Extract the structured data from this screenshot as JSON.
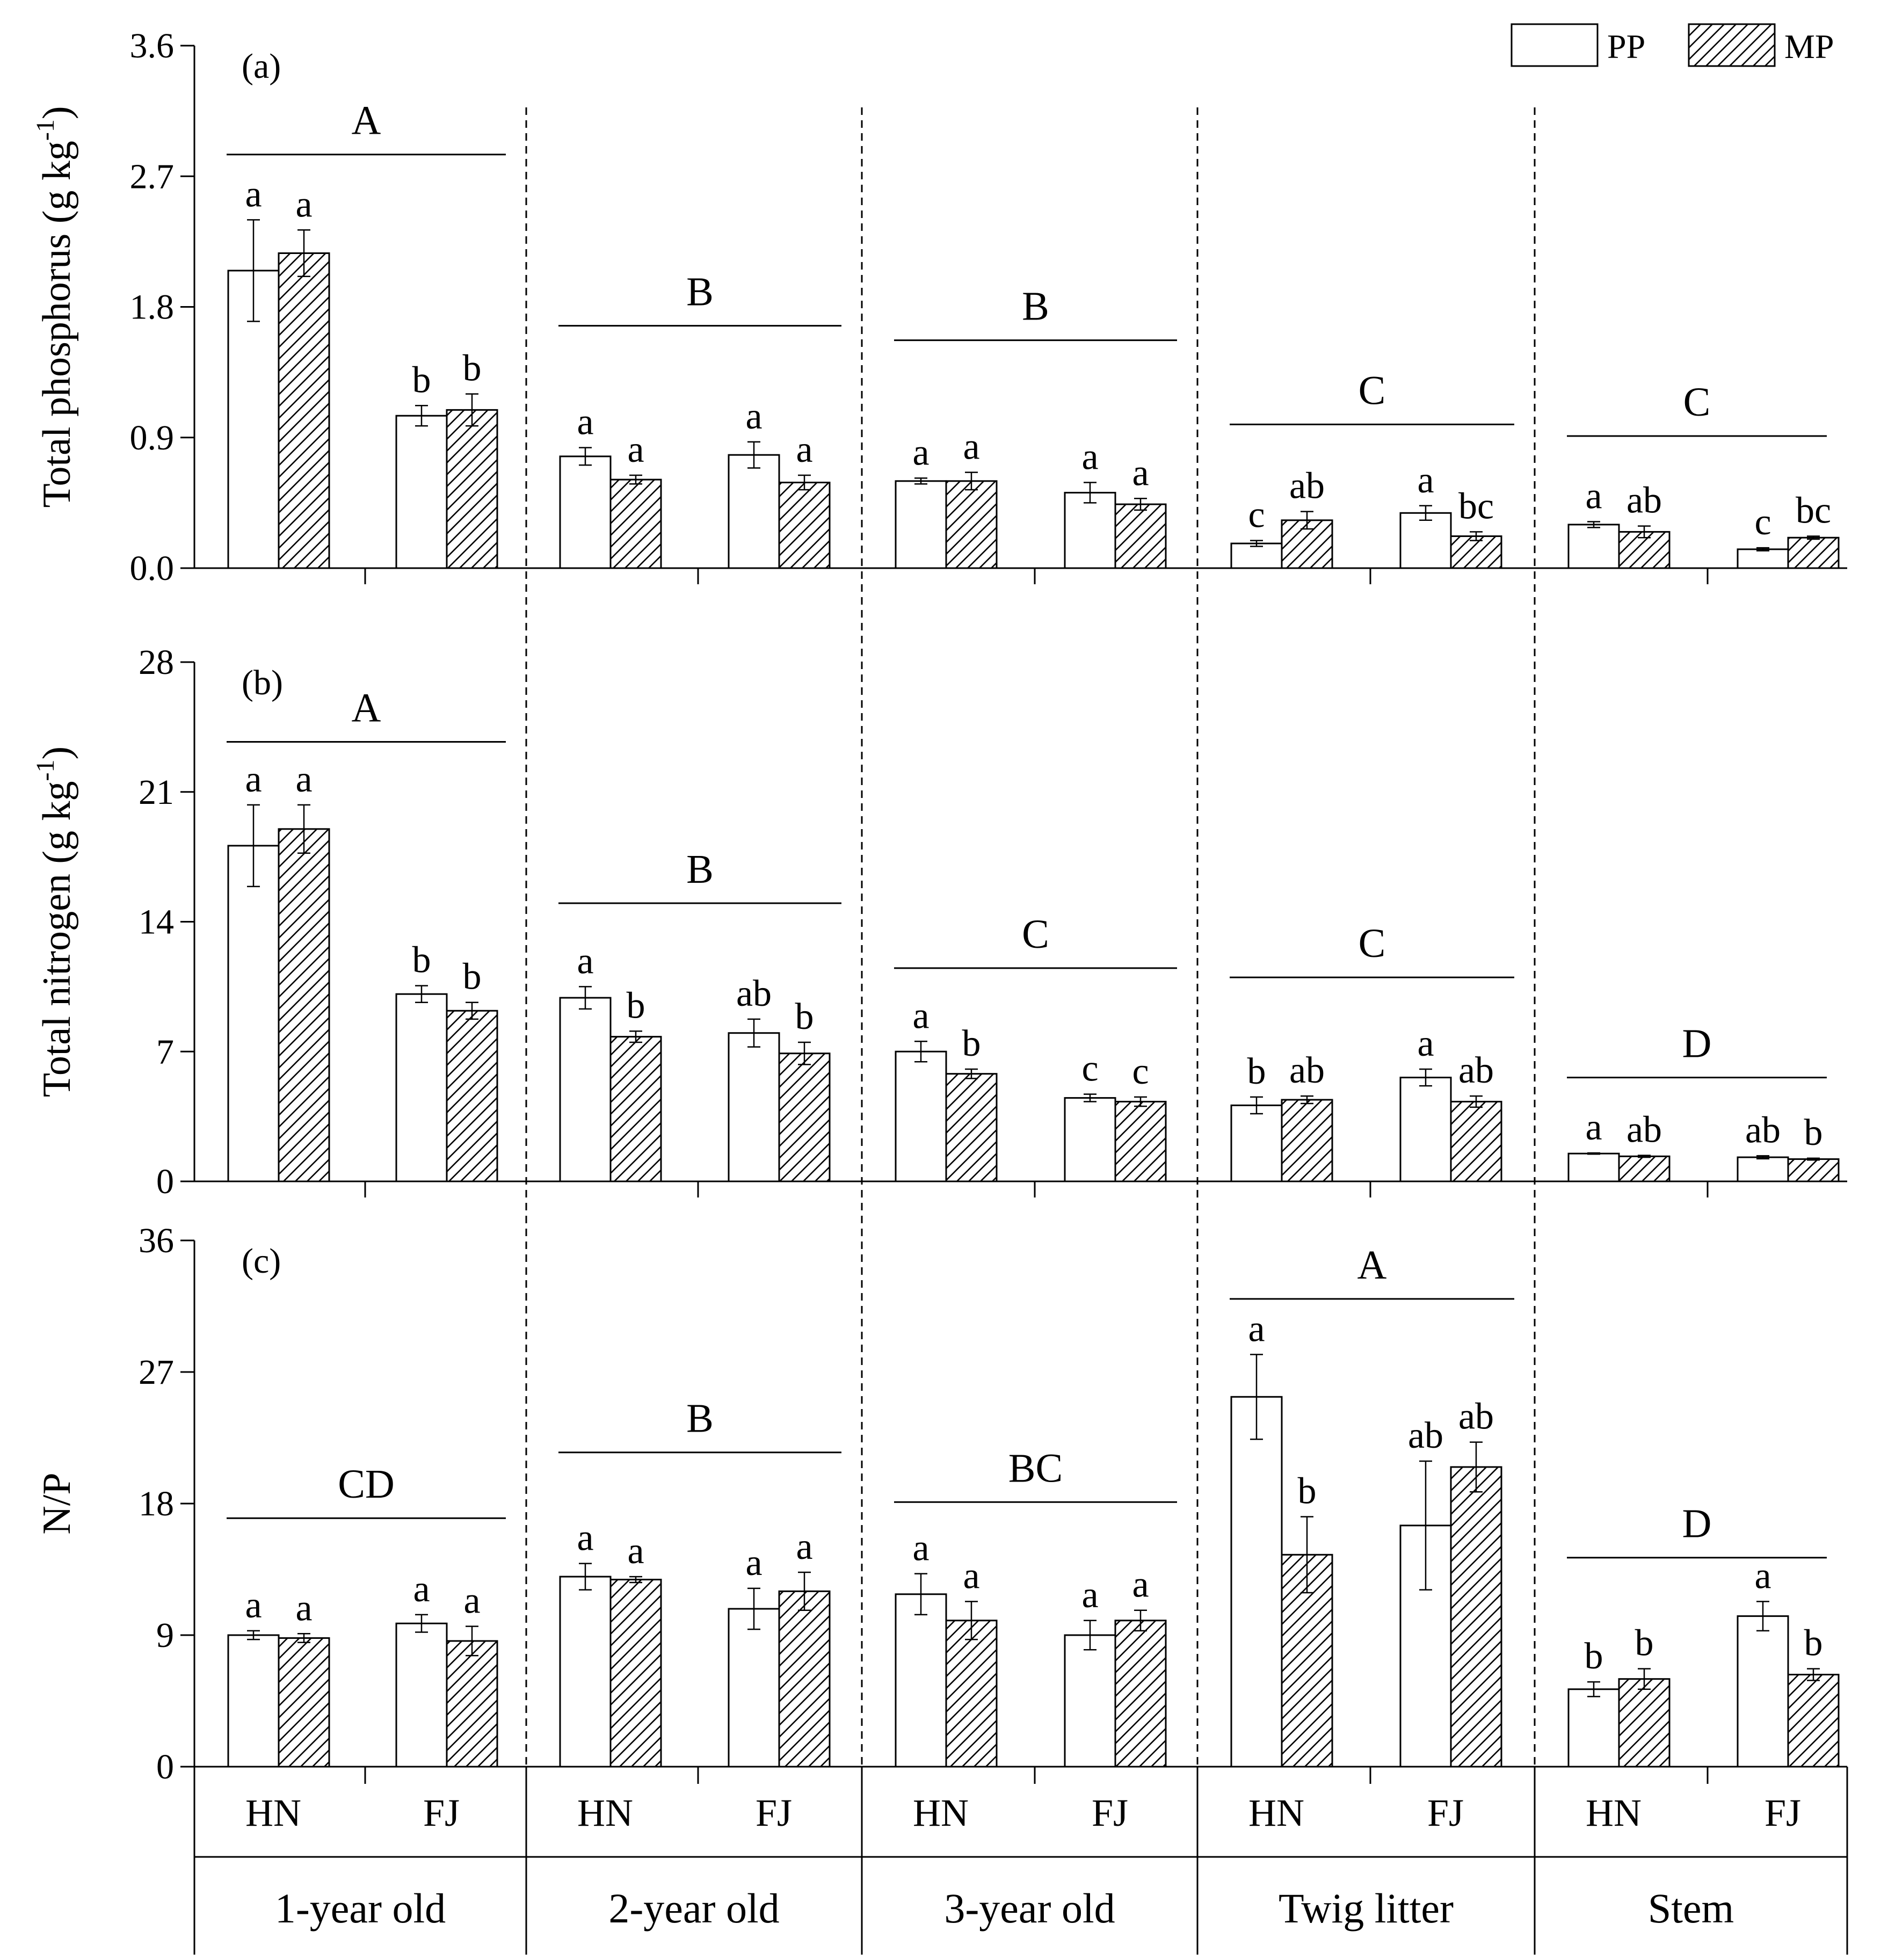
{
  "chart_data": {
    "type": "bar",
    "groups": [
      "1-year old",
      "2-year old",
      "3-year old",
      "Twig litter",
      "Stem"
    ],
    "sites": [
      "HN",
      "FJ"
    ],
    "legend": [
      {
        "name": "PP",
        "pattern": "open"
      },
      {
        "name": "MP",
        "pattern": "hatched"
      }
    ],
    "panels": [
      {
        "label": "(a)",
        "ylabel": "Total phosphorus (g kg",
        "ylabel_sup": "-1",
        "ylabel_end": ")",
        "ylim": [
          0,
          3.6
        ],
        "yticks": [
          0.0,
          0.9,
          1.8,
          2.7,
          3.6
        ],
        "tick_labels": [
          "0.0",
          "0.9",
          "1.8",
          "2.7",
          "3.6"
        ],
        "group_letters": [
          "A",
          "B",
          "B",
          "C",
          "C"
        ],
        "group_line_values": [
          2.85,
          1.67,
          1.57,
          0.99,
          0.91
        ],
        "bars": [
          [
            {
              "pp": 2.05,
              "pp_err": 0.35,
              "mp": 2.17,
              "mp_err": 0.16,
              "pp_sig": "a",
              "mp_sig": "a"
            },
            {
              "pp": 1.05,
              "pp_err": 0.07,
              "mp": 1.09,
              "mp_err": 0.11,
              "pp_sig": "b",
              "mp_sig": "b"
            }
          ],
          [
            {
              "pp": 0.77,
              "pp_err": 0.06,
              "mp": 0.61,
              "mp_err": 0.03,
              "pp_sig": "a",
              "mp_sig": "a"
            },
            {
              "pp": 0.78,
              "pp_err": 0.09,
              "mp": 0.59,
              "mp_err": 0.05,
              "pp_sig": "a",
              "mp_sig": "a"
            }
          ],
          [
            {
              "pp": 0.6,
              "pp_err": 0.02,
              "mp": 0.6,
              "mp_err": 0.06,
              "pp_sig": "a",
              "mp_sig": "a"
            },
            {
              "pp": 0.52,
              "pp_err": 0.07,
              "mp": 0.44,
              "mp_err": 0.04,
              "pp_sig": "a",
              "mp_sig": "a"
            }
          ],
          [
            {
              "pp": 0.17,
              "pp_err": 0.02,
              "mp": 0.33,
              "mp_err": 0.06,
              "pp_sig": "c",
              "mp_sig": "ab"
            },
            {
              "pp": 0.38,
              "pp_err": 0.05,
              "mp": 0.22,
              "mp_err": 0.03,
              "pp_sig": "a",
              "mp_sig": "bc"
            }
          ],
          [
            {
              "pp": 0.3,
              "pp_err": 0.02,
              "mp": 0.25,
              "mp_err": 0.04,
              "pp_sig": "a",
              "mp_sig": "ab"
            },
            {
              "pp": 0.13,
              "pp_err": 0.01,
              "mp": 0.21,
              "mp_err": 0.01,
              "pp_sig": "c",
              "mp_sig": "bc"
            }
          ]
        ]
      },
      {
        "label": "(b)",
        "ylabel": "Total nitrogen (g kg",
        "ylabel_sup": "-1",
        "ylabel_end": ")",
        "ylim": [
          0,
          28
        ],
        "yticks": [
          0,
          7,
          14,
          21,
          28
        ],
        "tick_labels": [
          "0",
          "7",
          "14",
          "21",
          "28"
        ],
        "group_letters": [
          "A",
          "B",
          "C",
          "C",
          "D"
        ],
        "group_line_values": [
          23.7,
          15.0,
          11.5,
          11.0,
          5.6
        ],
        "bars": [
          [
            {
              "pp": 18.1,
              "pp_err": 2.2,
              "mp": 19.0,
              "mp_err": 1.3,
              "pp_sig": "a",
              "mp_sig": "a"
            },
            {
              "pp": 10.1,
              "pp_err": 0.45,
              "mp": 9.2,
              "mp_err": 0.45,
              "pp_sig": "b",
              "mp_sig": "b"
            }
          ],
          [
            {
              "pp": 9.9,
              "pp_err": 0.6,
              "mp": 7.8,
              "mp_err": 0.3,
              "pp_sig": "a",
              "mp_sig": "b"
            },
            {
              "pp": 8.0,
              "pp_err": 0.75,
              "mp": 6.9,
              "mp_err": 0.6,
              "pp_sig": "ab",
              "mp_sig": "b"
            }
          ],
          [
            {
              "pp": 7.0,
              "pp_err": 0.55,
              "mp": 5.8,
              "mp_err": 0.25,
              "pp_sig": "a",
              "mp_sig": "b"
            },
            {
              "pp": 4.5,
              "pp_err": 0.2,
              "mp": 4.3,
              "mp_err": 0.25,
              "pp_sig": "c",
              "mp_sig": "c"
            }
          ],
          [
            {
              "pp": 4.1,
              "pp_err": 0.45,
              "mp": 4.4,
              "mp_err": 0.2,
              "pp_sig": "b",
              "mp_sig": "ab"
            },
            {
              "pp": 5.6,
              "pp_err": 0.45,
              "mp": 4.3,
              "mp_err": 0.3,
              "pp_sig": "a",
              "mp_sig": "ab"
            }
          ],
          [
            {
              "pp": 1.5,
              "pp_err": 0.03,
              "mp": 1.35,
              "mp_err": 0.05,
              "pp_sig": "a",
              "mp_sig": "ab"
            },
            {
              "pp": 1.3,
              "pp_err": 0.08,
              "mp": 1.2,
              "mp_err": 0.05,
              "pp_sig": "ab",
              "mp_sig": "b"
            }
          ]
        ]
      },
      {
        "label": "(c)",
        "ylabel": "N/P",
        "ylabel_sup": "",
        "ylabel_end": "",
        "ylim": [
          0,
          36
        ],
        "yticks": [
          0,
          9,
          18,
          27,
          36
        ],
        "tick_labels": [
          "0",
          "9",
          "18",
          "27",
          "36"
        ],
        "group_letters": [
          "CD",
          "B",
          "BC",
          "A",
          "D"
        ],
        "group_line_values": [
          17.0,
          21.5,
          18.1,
          32.0,
          14.3
        ],
        "bars": [
          [
            {
              "pp": 9.0,
              "pp_err": 0.3,
              "mp": 8.8,
              "mp_err": 0.3,
              "pp_sig": "a",
              "mp_sig": "a"
            },
            {
              "pp": 9.8,
              "pp_err": 0.6,
              "mp": 8.6,
              "mp_err": 1.0,
              "pp_sig": "a",
              "mp_sig": "a"
            }
          ],
          [
            {
              "pp": 13.0,
              "pp_err": 0.9,
              "mp": 12.8,
              "mp_err": 0.2,
              "pp_sig": "a",
              "mp_sig": "a"
            },
            {
              "pp": 10.8,
              "pp_err": 1.4,
              "mp": 12.0,
              "mp_err": 1.3,
              "pp_sig": "a",
              "mp_sig": "a"
            }
          ],
          [
            {
              "pp": 11.8,
              "pp_err": 1.4,
              "mp": 10.0,
              "mp_err": 1.3,
              "pp_sig": "a",
              "mp_sig": "a"
            },
            {
              "pp": 9.0,
              "pp_err": 1.0,
              "mp": 10.0,
              "mp_err": 0.7,
              "pp_sig": "a",
              "mp_sig": "a"
            }
          ],
          [
            {
              "pp": 25.3,
              "pp_err": 2.9,
              "mp": 14.5,
              "mp_err": 2.6,
              "pp_sig": "a",
              "mp_sig": "b"
            },
            {
              "pp": 16.5,
              "pp_err": 4.4,
              "mp": 20.5,
              "mp_err": 1.7,
              "pp_sig": "ab",
              "mp_sig": "ab"
            }
          ],
          [
            {
              "pp": 5.3,
              "pp_err": 0.5,
              "mp": 6.0,
              "mp_err": 0.7,
              "pp_sig": "b",
              "mp_sig": "b"
            },
            {
              "pp": 10.3,
              "pp_err": 1.0,
              "mp": 6.3,
              "mp_err": 0.4,
              "pp_sig": "a",
              "mp_sig": "b"
            }
          ]
        ]
      }
    ]
  }
}
